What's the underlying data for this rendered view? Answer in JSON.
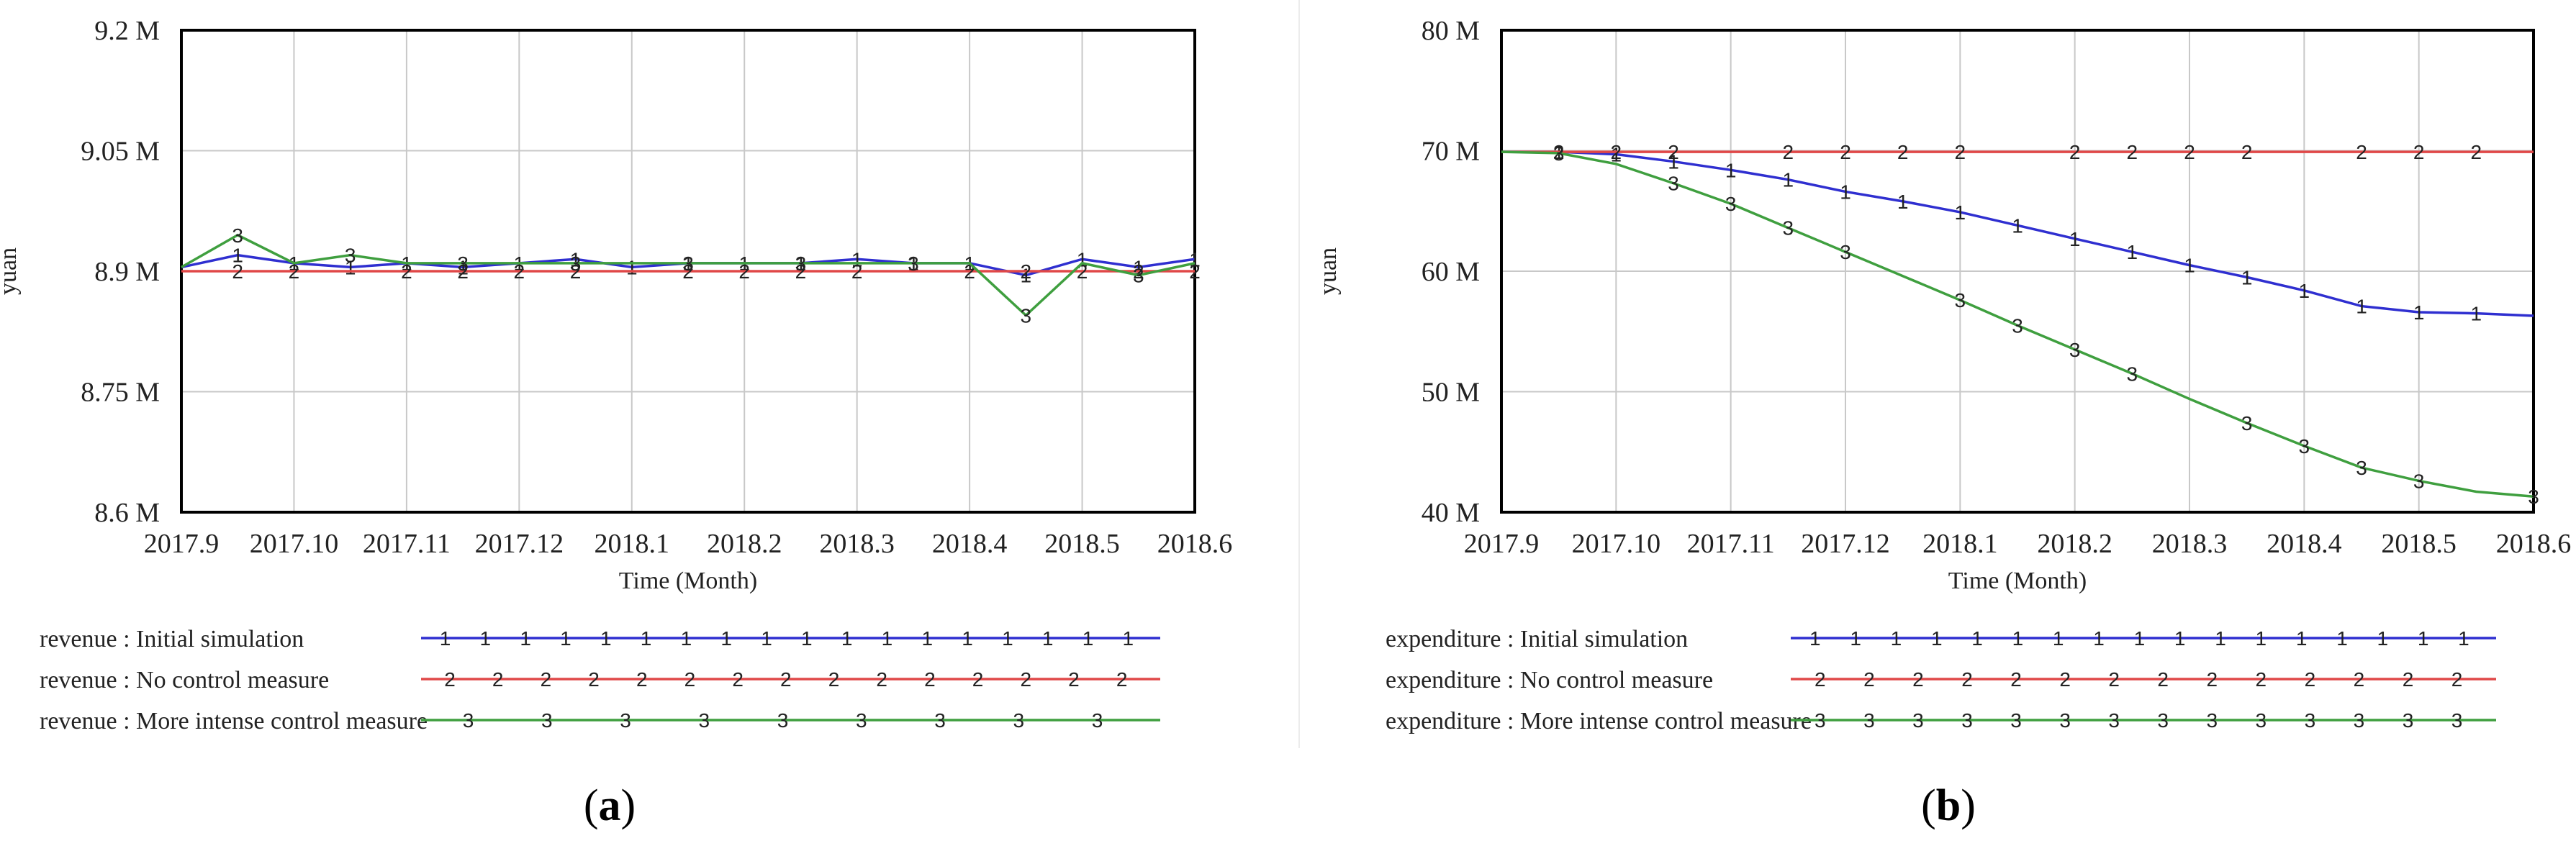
{
  "chart_data": [
    {
      "type": "line",
      "panel_label": "a",
      "xlabel": "Time (Month)",
      "ylabel": "yuan",
      "ylim": [
        8.6,
        9.2
      ],
      "x_range": [
        0,
        9
      ],
      "x_ticks": [
        {
          "x": 0,
          "label": "2017.9"
        },
        {
          "x": 1,
          "label": "2017.10"
        },
        {
          "x": 2,
          "label": "2017.11"
        },
        {
          "x": 3,
          "label": "2017.12"
        },
        {
          "x": 4,
          "label": "2018.1"
        },
        {
          "x": 5,
          "label": "2018.2"
        },
        {
          "x": 6,
          "label": "2018.3"
        },
        {
          "x": 7,
          "label": "2018.4"
        },
        {
          "x": 8,
          "label": "2018.5"
        },
        {
          "x": 9,
          "label": "2018.6"
        }
      ],
      "y_ticks": [
        {
          "y": 9.2,
          "label": "9.2 M"
        },
        {
          "y": 9.05,
          "label": "9.05 M"
        },
        {
          "y": 8.9,
          "label": "8.9 M"
        },
        {
          "y": 8.75,
          "label": "8.75 M"
        },
        {
          "y": 8.6,
          "label": "8.6 M"
        }
      ],
      "series": [
        {
          "name": "revenue : Initial simulation",
          "marker": "1",
          "color": "#2f2fd0",
          "x": [
            0,
            0.5,
            1,
            1.5,
            2,
            2.5,
            3,
            3.5,
            4,
            4.5,
            5,
            5.5,
            6,
            6.5,
            7,
            7.5,
            8,
            8.5,
            9
          ],
          "y": [
            8.905,
            8.92,
            8.91,
            8.905,
            8.91,
            8.905,
            8.91,
            8.915,
            8.905,
            8.91,
            8.91,
            8.91,
            8.915,
            8.91,
            8.91,
            8.895,
            8.915,
            8.905,
            8.915
          ],
          "marker_x": [
            0.5,
            1,
            1.5,
            2,
            2.5,
            3,
            3.5,
            4,
            4.5,
            5,
            5.5,
            6,
            6.5,
            7,
            7.5,
            8,
            8.5,
            9
          ]
        },
        {
          "name": "revenue : No control measure",
          "marker": "2",
          "color": "#e04848",
          "x": [
            0,
            9
          ],
          "y": [
            8.9,
            8.9
          ],
          "marker_x": [
            0.5,
            1,
            2,
            2.5,
            3,
            3.5,
            4.5,
            5,
            5.5,
            6,
            7,
            7.5,
            8,
            8.5,
            9
          ]
        },
        {
          "name": "revenue : More intense control measure",
          "marker": "3",
          "color": "#3f9f3f",
          "x": [
            0,
            0.5,
            1,
            1.5,
            2,
            2.5,
            3,
            3.5,
            4,
            4.5,
            5,
            5.5,
            6,
            6.5,
            7,
            7.5,
            8,
            8.5,
            9
          ],
          "y": [
            8.905,
            8.945,
            8.91,
            8.92,
            8.91,
            8.91,
            8.91,
            8.91,
            8.91,
            8.91,
            8.91,
            8.91,
            8.91,
            8.91,
            8.91,
            8.845,
            8.91,
            8.895,
            8.91
          ],
          "marker_x": [
            0.5,
            1.5,
            2.5,
            3.5,
            4.5,
            5.5,
            6.5,
            7.5,
            8.5
          ]
        }
      ]
    },
    {
      "type": "line",
      "panel_label": "b",
      "xlabel": "Time (Month)",
      "ylabel": "yuan",
      "ylim": [
        40,
        80
      ],
      "x_range": [
        0,
        9
      ],
      "x_ticks": [
        {
          "x": 0,
          "label": "2017.9"
        },
        {
          "x": 1,
          "label": "2017.10"
        },
        {
          "x": 2,
          "label": "2017.11"
        },
        {
          "x": 3,
          "label": "2017.12"
        },
        {
          "x": 4,
          "label": "2018.1"
        },
        {
          "x": 5,
          "label": "2018.2"
        },
        {
          "x": 6,
          "label": "2018.3"
        },
        {
          "x": 7,
          "label": "2018.4"
        },
        {
          "x": 8,
          "label": "2018.5"
        },
        {
          "x": 9,
          "label": "2018.6"
        }
      ],
      "y_ticks": [
        {
          "y": 80,
          "label": "80 M"
        },
        {
          "y": 70,
          "label": "70 M"
        },
        {
          "y": 60,
          "label": "60 M"
        },
        {
          "y": 50,
          "label": "50 M"
        },
        {
          "y": 40,
          "label": "40 M"
        }
      ],
      "series": [
        {
          "name": "expenditure : Initial simulation",
          "marker": "1",
          "color": "#2f2fd0",
          "x": [
            0,
            0.5,
            1,
            1.5,
            2,
            2.5,
            3,
            3.5,
            4,
            4.5,
            5,
            5.5,
            6,
            6.5,
            7,
            7.5,
            8,
            8.5,
            9
          ],
          "y": [
            69.9,
            69.9,
            69.7,
            69.1,
            68.4,
            67.6,
            66.6,
            65.8,
            64.9,
            63.8,
            62.7,
            61.6,
            60.5,
            59.5,
            58.4,
            57.1,
            56.6,
            56.5,
            56.3
          ],
          "marker_x": [
            0.5,
            1,
            1.5,
            2,
            2.5,
            3,
            3.5,
            4,
            4.5,
            5,
            5.5,
            6,
            6.5,
            7,
            7.5,
            8,
            8.5
          ]
        },
        {
          "name": "expenditure : No control measure",
          "marker": "2",
          "color": "#e04848",
          "x": [
            0,
            9
          ],
          "y": [
            69.9,
            69.9
          ],
          "marker_x": [
            0.5,
            1,
            1.5,
            2.5,
            3,
            3.5,
            4,
            5,
            5.5,
            6,
            6.5,
            7.5,
            8,
            8.5
          ]
        },
        {
          "name": "expenditure : More intense control measure",
          "marker": "3",
          "color": "#3f9f3f",
          "x": [
            0,
            0.5,
            1,
            1.5,
            2,
            2.5,
            3,
            3.5,
            4,
            4.5,
            5,
            5.5,
            6,
            6.5,
            7,
            7.5,
            8,
            8.5,
            9
          ],
          "y": [
            69.9,
            69.8,
            68.9,
            67.3,
            65.6,
            63.6,
            61.6,
            59.6,
            57.6,
            55.5,
            53.5,
            51.5,
            49.4,
            47.4,
            45.5,
            43.7,
            42.6,
            41.7,
            41.3
          ],
          "marker_x": [
            0.5,
            1.5,
            2,
            2.5,
            3,
            4,
            4.5,
            5,
            5.5,
            6.5,
            7,
            7.5,
            8,
            9
          ]
        }
      ]
    }
  ]
}
